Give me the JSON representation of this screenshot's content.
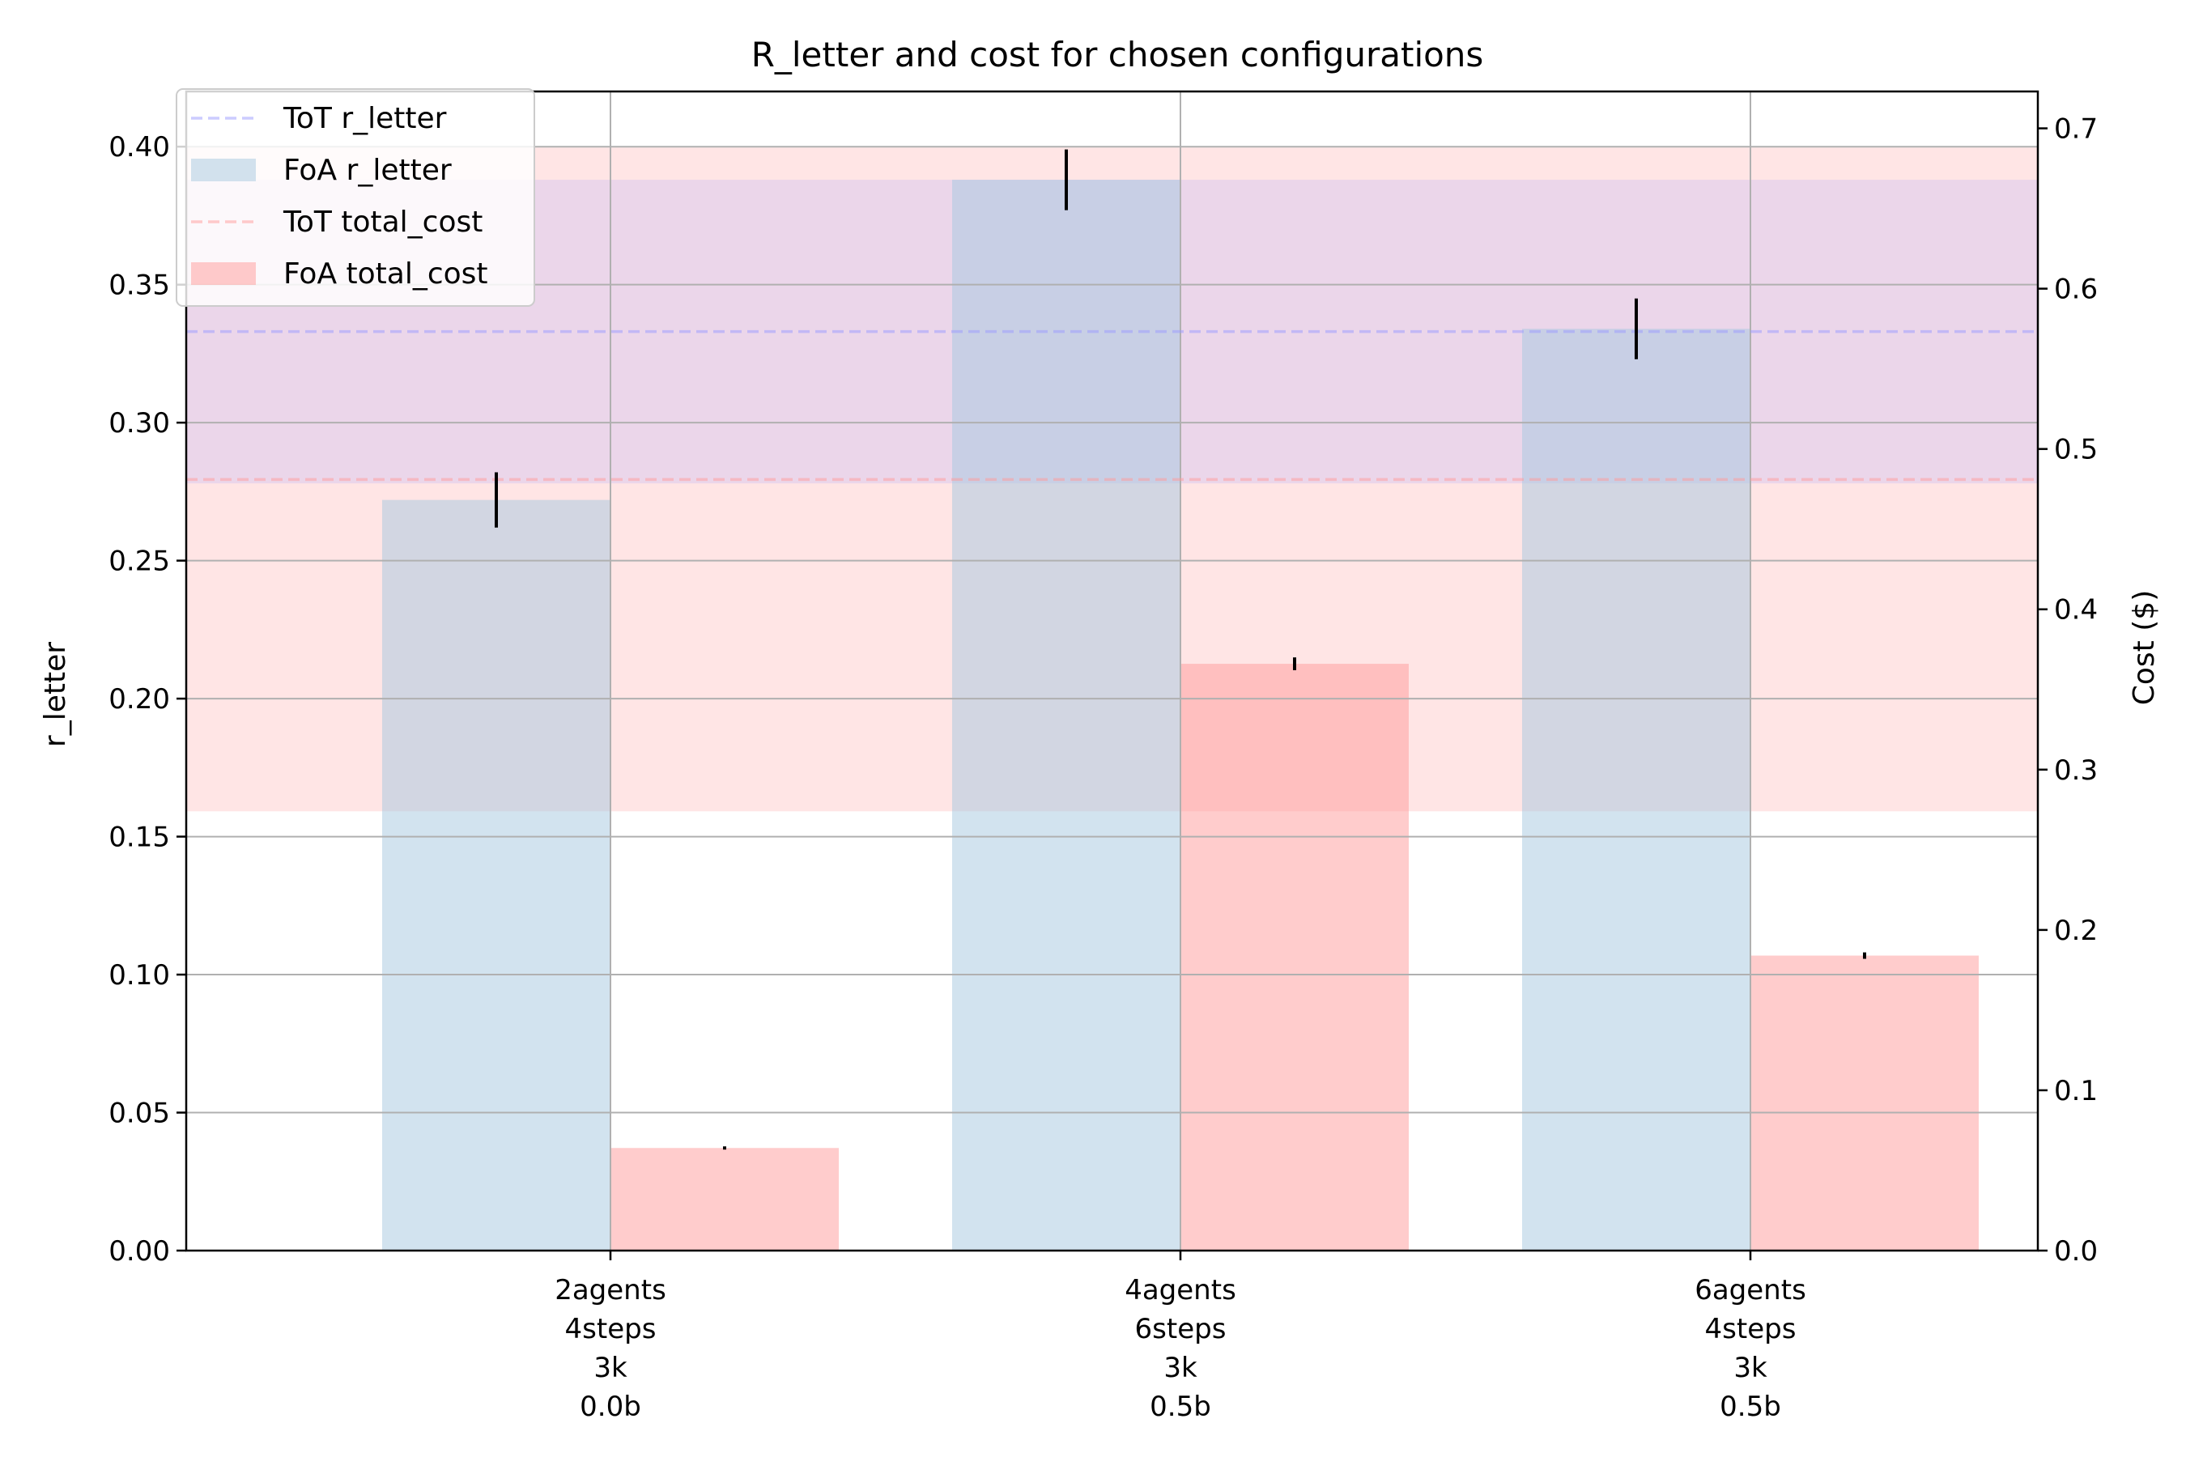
{
  "chart_data": {
    "type": "bar",
    "title": "R_letter and cost for chosen configurations",
    "categories": [
      [
        "2agents",
        "4steps",
        "3k",
        "0.0b"
      ],
      [
        "4agents",
        "6steps",
        "3k",
        "0.5b"
      ],
      [
        "6agents",
        "4steps",
        "3k",
        "0.5b"
      ]
    ],
    "ylabel": "r_letter",
    "ylabel_right": "Cost ($)",
    "ylim": [
      0,
      0.42
    ],
    "ylim_right": [
      0,
      0.723
    ],
    "yticks": [
      0.0,
      0.05,
      0.1,
      0.15,
      0.2,
      0.25,
      0.3,
      0.35,
      0.4
    ],
    "yticks_labels": [
      "0.00",
      "0.05",
      "0.10",
      "0.15",
      "0.20",
      "0.25",
      "0.30",
      "0.35",
      "0.40"
    ],
    "yticks_right": [
      0.0,
      0.1,
      0.2,
      0.3,
      0.4,
      0.5,
      0.6,
      0.7
    ],
    "yticks_right_labels": [
      "0.0",
      "0.1",
      "0.2",
      "0.3",
      "0.4",
      "0.5",
      "0.6",
      "0.7"
    ],
    "grid": true,
    "legend_position": "top-left",
    "series": [
      {
        "name": "FoA r_letter",
        "axis": "left",
        "values": [
          0.272,
          0.388,
          0.334
        ],
        "errors": [
          0.01,
          0.011,
          0.011
        ],
        "color": "#a6c8e0"
      },
      {
        "name": "FoA total_cost",
        "axis": "right",
        "values": [
          0.064,
          0.366,
          0.184
        ],
        "errors": [
          0.001,
          0.004,
          0.002
        ],
        "color": "#ff9999"
      }
    ],
    "reference": [
      {
        "name": "ToT r_letter",
        "axis": "left",
        "value": 0.333,
        "band": [
          0.278,
          0.388
        ],
        "color": "#9999ff"
      },
      {
        "name": "ToT total_cost",
        "axis": "right",
        "value": 0.481,
        "band": [
          0.274,
          0.688
        ],
        "color": "#ff9999"
      }
    ]
  }
}
